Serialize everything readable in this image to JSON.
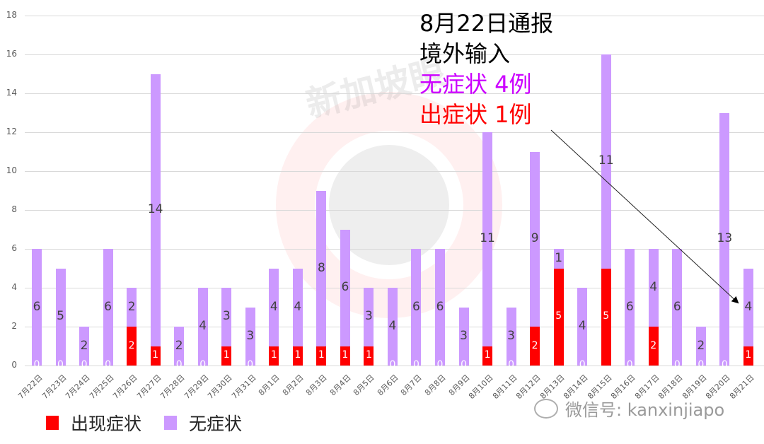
{
  "chart_data": {
    "type": "bar",
    "stacked": true,
    "title": "",
    "xlabel": "",
    "ylabel": "",
    "ylim": [
      0,
      18
    ],
    "yticks": [
      0,
      2,
      4,
      6,
      8,
      10,
      12,
      14,
      16,
      18
    ],
    "grid": true,
    "legend_position": "bottom-left",
    "categories": [
      "7月22日",
      "7月23日",
      "7月24日",
      "7月25日",
      "7月26日",
      "7月27日",
      "7月28日",
      "7月29日",
      "7月30日",
      "7月31日",
      "8月1日",
      "8月2日",
      "8月3日",
      "8月4日",
      "8月5日",
      "8月6日",
      "8月7日",
      "8月8日",
      "8月9日",
      "8月10日",
      "8月11日",
      "8月12日",
      "8月13日",
      "8月14日",
      "8月15日",
      "8月16日",
      "8月17日",
      "8月18日",
      "8月19日",
      "8月20日",
      "8月21日"
    ],
    "series": [
      {
        "name": "出现症状",
        "color": "#ff0000",
        "values": [
          0,
          0,
          0,
          0,
          2,
          1,
          0,
          0,
          1,
          0,
          1,
          1,
          1,
          1,
          1,
          0,
          0,
          0,
          0,
          1,
          0,
          2,
          5,
          0,
          5,
          0,
          2,
          0,
          0,
          0,
          1
        ]
      },
      {
        "name": "无症状",
        "color": "#cc99ff",
        "values": [
          6,
          5,
          2,
          6,
          2,
          14,
          2,
          4,
          3,
          3,
          4,
          4,
          8,
          6,
          3,
          4,
          6,
          6,
          3,
          11,
          3,
          9,
          1,
          4,
          11,
          6,
          4,
          6,
          2,
          13,
          4
        ]
      }
    ],
    "annotations": [
      {
        "text": "8月22日通报",
        "color": "#000000"
      },
      {
        "text": "境外输入",
        "color": "#000000"
      },
      {
        "text": "无症状 4例",
        "color": "#cc00ff"
      },
      {
        "text": "出症状 1例",
        "color": "#ff0000"
      }
    ]
  },
  "legend": {
    "items": [
      {
        "label": "出现症状",
        "color": "#ff0000"
      },
      {
        "label": "无症状",
        "color": "#cc99ff"
      }
    ]
  },
  "watermark": {
    "text": "新加坡眼",
    "wechat": "微信号: kanxinjiapo"
  }
}
